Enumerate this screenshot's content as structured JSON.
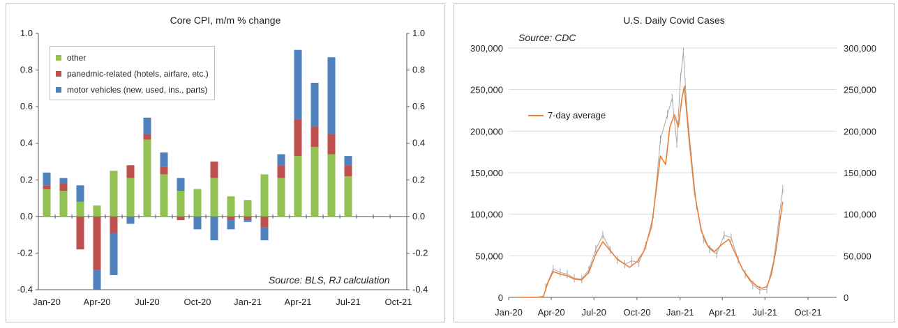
{
  "left": {
    "title": "Core CPI, m/m % change",
    "source": "Source: BLS, RJ calculation",
    "colors": {
      "other": "#92c352",
      "pandemic": "#c0504d",
      "motor": "#4f81bd"
    },
    "legend": [
      {
        "label": "other",
        "color": "#92c352"
      },
      {
        "label": "panedmic-related (hotels, airfare, etc.)",
        "color": "#c0504d"
      },
      {
        "label": "motor vehicles (new, used, ins., parts)",
        "color": "#4f81bd"
      }
    ]
  },
  "right": {
    "title": "U.S. Daily Covid Cases",
    "source": "Source: CDC",
    "line_color": "#ed7d31",
    "daily_color": "#a6a6a6",
    "legend_label": "7-day average"
  },
  "chart_data": [
    {
      "type": "bar",
      "stacked": true,
      "title": "Core CPI, m/m % change",
      "categories": [
        "Jan-20",
        "Feb-20",
        "Mar-20",
        "Apr-20",
        "May-20",
        "Jun-20",
        "Jul-20",
        "Aug-20",
        "Sep-20",
        "Oct-20",
        "Nov-20",
        "Dec-20",
        "Jan-21",
        "Feb-21",
        "Mar-21",
        "Apr-21",
        "May-21",
        "Jun-21",
        "Jul-21",
        "Aug-21",
        "Sep-21",
        "Oct-21"
      ],
      "x_tick_labels": [
        "Jan-20",
        "Apr-20",
        "Jul-20",
        "Oct-20",
        "Jan-21",
        "Apr-21",
        "Jul-21",
        "Oct-21"
      ],
      "series": [
        {
          "name": "other",
          "values": [
            0.15,
            0.14,
            0.08,
            0.06,
            0.25,
            0.21,
            0.42,
            0.23,
            0.14,
            0.15,
            0.21,
            0.11,
            0.09,
            0.23,
            0.21,
            0.33,
            0.38,
            0.34,
            0.22,
            null,
            null,
            null
          ]
        },
        {
          "name": "panedmic-related (hotels, airfare, etc.)",
          "values": [
            0.02,
            0.04,
            -0.18,
            -0.29,
            -0.09,
            0.07,
            0.03,
            0.04,
            -0.02,
            0.0,
            0.09,
            -0.02,
            -0.02,
            -0.06,
            0.07,
            0.2,
            0.11,
            0.11,
            0.06,
            null,
            null,
            null
          ]
        },
        {
          "name": "motor vehicles (new, used, ins., parts)",
          "values": [
            0.07,
            0.03,
            0.09,
            -0.11,
            -0.23,
            -0.04,
            0.09,
            0.08,
            0.07,
            -0.07,
            -0.13,
            -0.05,
            -0.01,
            -0.07,
            0.06,
            0.38,
            0.24,
            0.42,
            0.05,
            null,
            null,
            null
          ]
        }
      ],
      "ylim": [
        -0.4,
        1.0
      ],
      "y_ticks": [
        "1.0",
        "0.8",
        "0.6",
        "0.4",
        "0.2",
        "0.0",
        "-0.2",
        "-0.4"
      ],
      "legend_position": "top-left",
      "grid": false
    },
    {
      "type": "line",
      "title": "U.S. Daily Covid Cases",
      "x_tick_labels": [
        "Jan-20",
        "Apr-20",
        "Jul-20",
        "Oct-20",
        "Jan-21",
        "Apr-21",
        "Jul-21",
        "Oct-21"
      ],
      "y_ticks": [
        "300,000",
        "250,000",
        "200,000",
        "150,000",
        "100,000",
        "50,000",
        "0"
      ],
      "ylim": [
        0,
        300000
      ],
      "grid": true,
      "legend_position": "left",
      "series": [
        {
          "name": "7-day average",
          "x": [
            "2020-01-20",
            "2020-03-01",
            "2020-03-15",
            "2020-03-25",
            "2020-04-05",
            "2020-04-20",
            "2020-05-05",
            "2020-05-20",
            "2020-06-05",
            "2020-06-20",
            "2020-07-05",
            "2020-07-20",
            "2020-08-05",
            "2020-08-20",
            "2020-09-05",
            "2020-09-15",
            "2020-10-01",
            "2020-10-15",
            "2020-11-01",
            "2020-11-10",
            "2020-11-20",
            "2020-12-01",
            "2020-12-10",
            "2020-12-20",
            "2020-12-28",
            "2021-01-05",
            "2021-01-10",
            "2021-01-20",
            "2021-02-01",
            "2021-02-15",
            "2021-03-01",
            "2021-03-15",
            "2021-04-01",
            "2021-04-15",
            "2021-05-01",
            "2021-05-15",
            "2021-06-01",
            "2021-06-15",
            "2021-06-25",
            "2021-07-05",
            "2021-07-15",
            "2021-07-25",
            "2021-08-01",
            "2021-08-08"
          ],
          "y": [
            0,
            50,
            1000,
            18000,
            31000,
            28000,
            26000,
            22000,
            21000,
            30000,
            52000,
            67000,
            56000,
            46000,
            40000,
            36000,
            43000,
            55000,
            85000,
            125000,
            170000,
            160000,
            205000,
            220000,
            205000,
            240000,
            254000,
            190000,
            125000,
            80000,
            62000,
            55000,
            64000,
            70000,
            50000,
            33000,
            20000,
            13000,
            11000,
            13000,
            28000,
            58000,
            88000,
            115000
          ]
        },
        {
          "name": "daily",
          "x": [
            "2020-03-20",
            "2020-04-05",
            "2020-04-20",
            "2020-05-05",
            "2020-05-20",
            "2020-06-05",
            "2020-06-20",
            "2020-07-05",
            "2020-07-20",
            "2020-08-05",
            "2020-08-20",
            "2020-09-05",
            "2020-09-20",
            "2020-10-05",
            "2020-10-20",
            "2020-11-05",
            "2020-11-20",
            "2020-12-05",
            "2020-12-15",
            "2020-12-25",
            "2021-01-02",
            "2021-01-08",
            "2021-01-15",
            "2021-01-25",
            "2021-02-05",
            "2021-02-20",
            "2021-03-05",
            "2021-03-20",
            "2021-04-05",
            "2021-04-20",
            "2021-05-05",
            "2021-05-20",
            "2021-06-05",
            "2021-06-20",
            "2021-07-05",
            "2021-07-20",
            "2021-08-01",
            "2021-08-08"
          ],
          "y": [
            12000,
            34000,
            30000,
            28000,
            23000,
            22000,
            33000,
            58000,
            75000,
            57000,
            45000,
            40000,
            44000,
            42000,
            62000,
            100000,
            190000,
            220000,
            240000,
            185000,
            265000,
            295000,
            230000,
            170000,
            110000,
            70000,
            58000,
            52000,
            75000,
            72000,
            45000,
            28000,
            15000,
            9000,
            10000,
            45000,
            100000,
            130000
          ]
        }
      ]
    }
  ]
}
